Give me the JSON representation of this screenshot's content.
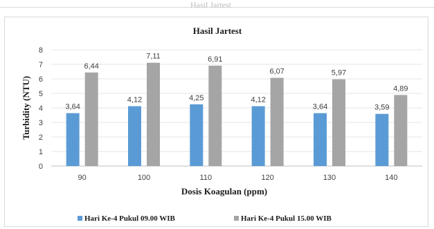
{
  "page_fragment": {
    "top_text": "Hasil Jartest"
  },
  "chart_data": {
    "type": "bar",
    "title": "Hasil Jartest",
    "xlabel": "Dosis Koagulan (ppm)",
    "ylabel": "Turbidity (NTU)",
    "categories": [
      "90",
      "100",
      "110",
      "120",
      "130",
      "140"
    ],
    "ylim": [
      0,
      8
    ],
    "yticks": [
      "0",
      "1",
      "2",
      "3",
      "4",
      "5",
      "6",
      "7",
      "8"
    ],
    "grid": true,
    "legend_position": "bottom",
    "series": [
      {
        "name": "Hari Ke-4 Pukul 09.00 WIB",
        "color": "#5b9bd5",
        "values": [
          3.64,
          4.12,
          4.25,
          4.12,
          3.64,
          3.59
        ],
        "labels": [
          "3,64",
          "4,12",
          "4,25",
          "4,12",
          "3,64",
          "3,59"
        ]
      },
      {
        "name": "Hari Ke-4 Pukul 15.00 WIB",
        "color": "#a5a5a5",
        "values": [
          6.44,
          7.11,
          6.91,
          6.07,
          5.97,
          4.89
        ],
        "labels": [
          "6,44",
          "7,11",
          "6,91",
          "6,07",
          "5,97",
          "4,89"
        ]
      }
    ]
  }
}
